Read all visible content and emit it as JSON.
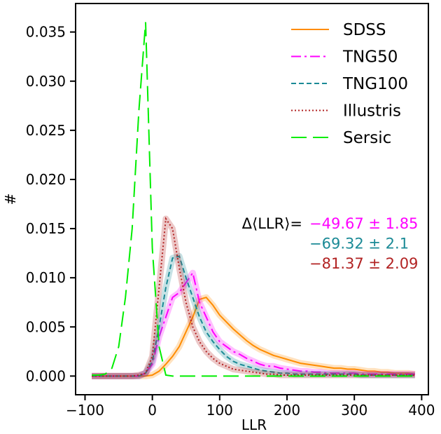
{
  "chart_data": {
    "type": "line",
    "x_label": "LLR",
    "y_label": "#",
    "x": [
      -90,
      -80,
      -70,
      -60,
      -50,
      -40,
      -30,
      -20,
      -10,
      0,
      10,
      20,
      30,
      40,
      50,
      60,
      70,
      80,
      90,
      100,
      110,
      120,
      130,
      140,
      150,
      160,
      170,
      180,
      190,
      200,
      210,
      220,
      230,
      240,
      250,
      260,
      270,
      280,
      290,
      300,
      310,
      320,
      330,
      340,
      350,
      360,
      370,
      380,
      390
    ],
    "series": [
      {
        "name": "SDSS",
        "color": "#ff8c00",
        "linestyle": "solid",
        "shaded": true,
        "values": [
          0,
          0,
          0,
          0,
          0,
          0,
          0,
          0,
          0,
          0.0001,
          0.0005,
          0.0012,
          0.002,
          0.003,
          0.0045,
          0.006,
          0.0078,
          0.008,
          0.0072,
          0.0062,
          0.0055,
          0.0048,
          0.0042,
          0.0036,
          0.0031,
          0.0027,
          0.0024,
          0.0021,
          0.0019,
          0.0017,
          0.0015,
          0.0013,
          0.0012,
          0.0011,
          0.001,
          0.0009,
          0.0008,
          0.0008,
          0.0007,
          0.0007,
          0.0006,
          0.0005,
          0.0005,
          0.0004,
          0.0004,
          0.0003,
          0.0003,
          0.0003,
          0.0002
        ]
      },
      {
        "name": "TNG50",
        "color": "#ff00ff",
        "linestyle": "dashdot",
        "shaded": true,
        "values": [
          0,
          0,
          0,
          0,
          0,
          0,
          0,
          0,
          0.0003,
          0.0012,
          0.004,
          0.006,
          0.008,
          0.0085,
          0.0095,
          0.0105,
          0.0075,
          0.006,
          0.0045,
          0.0035,
          0.003,
          0.0025,
          0.0022,
          0.0018,
          0.0015,
          0.0012,
          0.001,
          0.001,
          0.0008,
          0.0007,
          0.0006,
          0.0005,
          0.0005,
          0.0004,
          0.0004,
          0.0003,
          0.0003,
          0.0003,
          0.0003,
          0.0003,
          0.0002,
          0.0002,
          0.0002,
          0.0002,
          0.0002,
          0.0002,
          0.0002,
          0.0002,
          0.0002
        ]
      },
      {
        "name": "TNG100",
        "color": "#1b8a96",
        "linestyle": "dashed",
        "shaded": true,
        "values": [
          0,
          0,
          0,
          0,
          0,
          0,
          0,
          0,
          0.0003,
          0.0015,
          0.005,
          0.009,
          0.012,
          0.0122,
          0.01,
          0.008,
          0.006,
          0.0045,
          0.0035,
          0.0027,
          0.002,
          0.0015,
          0.0012,
          0.001,
          0.0008,
          0.0006,
          0.0005,
          0.0004,
          0.0003,
          0.0003,
          0.0002,
          0.0002,
          0.0002,
          0.0002,
          0.0002,
          0.0002,
          0.0002,
          0.0002,
          0.0002,
          0.0002,
          0.0001,
          0.0001,
          0.0001,
          0.0001,
          0.0001,
          0.0001,
          0.0001,
          0.0001,
          0.0001
        ]
      },
      {
        "name": "Illustris",
        "color": "#b22222",
        "linestyle": "dotted",
        "shaded": true,
        "values": [
          0,
          0,
          0,
          0,
          0,
          0,
          0,
          0.0001,
          0.0003,
          0.002,
          0.009,
          0.016,
          0.015,
          0.011,
          0.0075,
          0.005,
          0.0035,
          0.0025,
          0.0018,
          0.0013,
          0.001,
          0.0007,
          0.0006,
          0.0005,
          0.0004,
          0.0003,
          0.0002,
          0.0002,
          0.0001,
          0.0001,
          0.0001,
          0.0001,
          0.0001,
          0.0001,
          0.0001,
          0.0001,
          0.0001,
          0.0001,
          0.0001,
          0.0001,
          0.0001,
          0.0001,
          0.0001,
          0.0001,
          0.0001,
          0.0001,
          0.0001,
          0.0001,
          0.0001
        ]
      },
      {
        "name": "Sersic",
        "color": "#00ee00",
        "linestyle": "longdash",
        "shaded": false,
        "values": [
          0.0001,
          0.0001,
          0.0002,
          0.0008,
          0.003,
          0.008,
          0.015,
          0.027,
          0.036,
          0.013,
          0.003,
          0.0001,
          0,
          0,
          0,
          0,
          0,
          0,
          0,
          0,
          0,
          0,
          0,
          0,
          0,
          0,
          0,
          0,
          0,
          0,
          0,
          0,
          0,
          0,
          0,
          0,
          0,
          0,
          0,
          0,
          0,
          0,
          0,
          0,
          0,
          0,
          0,
          0,
          0
        ]
      }
    ],
    "annotation_label": "Δ⟨LLR⟩=",
    "annotations": [
      {
        "text": "−49.67 ± 1.85",
        "color": "#ff00ff"
      },
      {
        "text": "−69.32 ± 2.1",
        "color": "#1b8a96"
      },
      {
        "text": "−81.37 ± 2.09",
        "color": "#b22222"
      }
    ],
    "xlim": [
      -114,
      410
    ],
    "ylim": [
      -0.0019,
      0.0379
    ],
    "xticks": [
      {
        "value": -100,
        "label": "−100"
      },
      0,
      100,
      200,
      300,
      400
    ],
    "yticks": [
      {
        "value": 0,
        "label": "0.000"
      },
      {
        "value": 0.005,
        "label": "0.005"
      },
      {
        "value": 0.01,
        "label": "0.010"
      },
      {
        "value": 0.015,
        "label": "0.015"
      },
      {
        "value": 0.02,
        "label": "0.020"
      },
      {
        "value": 0.025,
        "label": "0.025"
      },
      {
        "value": 0.03,
        "label": "0.030"
      },
      {
        "value": 0.035,
        "label": "0.035"
      }
    ],
    "legend": "upper right",
    "grid": false
  }
}
